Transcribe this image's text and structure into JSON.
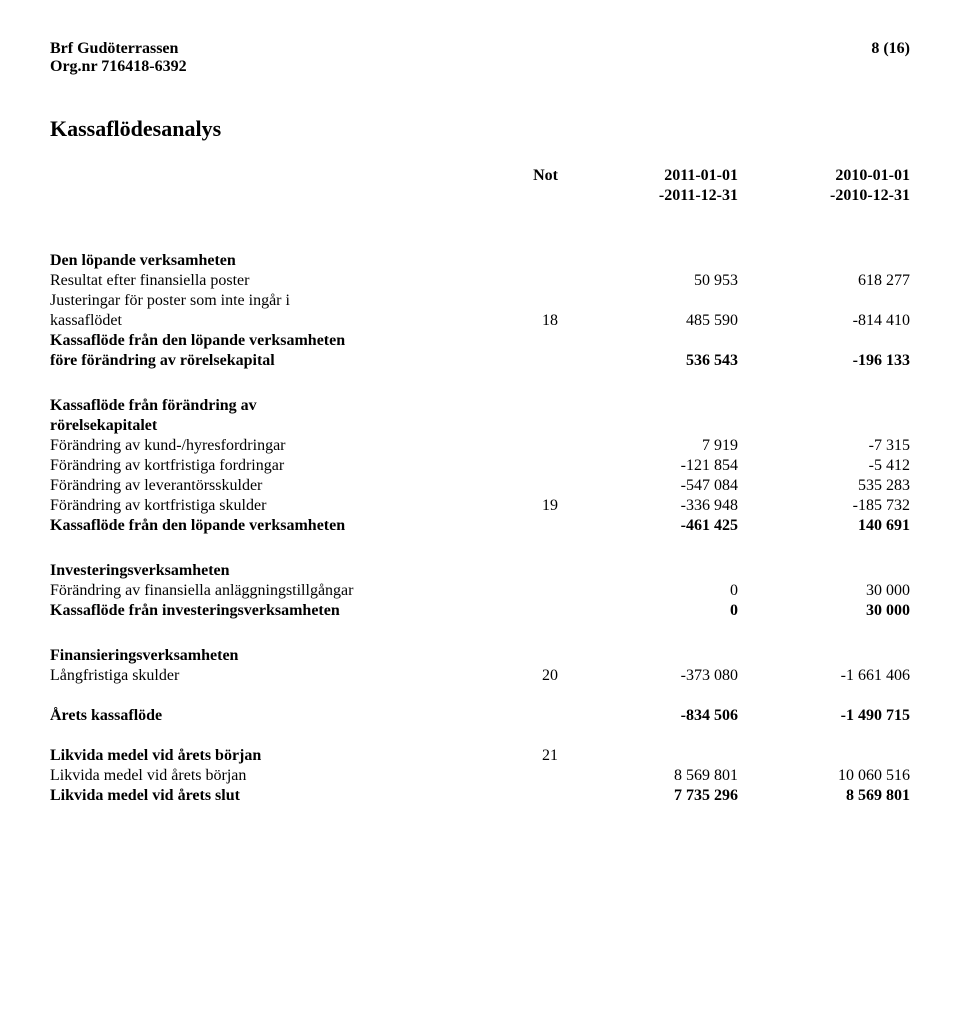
{
  "header": {
    "name": "Brf Gudöterrassen",
    "org_label": "Org.nr 716418-6392",
    "page": "8 (16)"
  },
  "title": "Kassaflödesanalys",
  "col_headers": {
    "note": "Not",
    "a1": "2011-01-01",
    "a2": "-2011-12-31",
    "b1": "2010-01-01",
    "b2": "-2010-12-31"
  },
  "s1": {
    "heading": "Den löpande verksamheten",
    "r1": {
      "label": "Resultat efter finansiella poster",
      "a": "50 953",
      "b": "618 277"
    },
    "r2a": "Justeringar för poster som inte ingår i",
    "r2b": {
      "label": "kassaflödet",
      "note": "18",
      "a": "485 590",
      "b": "-814 410"
    },
    "r3a": "Kassaflöde från den löpande verksamheten",
    "r3b": {
      "label": "före förändring av rörelsekapital",
      "a": "536 543",
      "b": "-196 133"
    }
  },
  "s2": {
    "h1": "Kassaflöde från förändring av",
    "h2": "rörelsekapitalet",
    "r1": {
      "label": "Förändring av kund-/hyresfordringar",
      "a": "7 919",
      "b": "-7 315"
    },
    "r2": {
      "label": "Förändring av kortfristiga fordringar",
      "a": "-121 854",
      "b": "-5 412"
    },
    "r3": {
      "label": "Förändring av leverantörsskulder",
      "a": "-547 084",
      "b": "535 283"
    },
    "r4": {
      "label": "Förändring av kortfristiga skulder",
      "note": "19",
      "a": "-336 948",
      "b": "-185 732"
    },
    "r5": {
      "label": "Kassaflöde från den löpande verksamheten",
      "a": "-461 425",
      "b": "140 691"
    }
  },
  "s3": {
    "heading": "Investeringsverksamheten",
    "r1": {
      "label": "Förändring av finansiella anläggningstillgångar",
      "a": "0",
      "b": "30 000"
    },
    "r2": {
      "label": "Kassaflöde från investeringsverksamheten",
      "a": "0",
      "b": "30 000"
    }
  },
  "s4": {
    "heading": "Finansieringsverksamheten",
    "r1": {
      "label": "Långfristiga skulder",
      "note": "20",
      "a": "-373 080",
      "b": "-1 661 406"
    }
  },
  "s5": {
    "r1": {
      "label": "Årets kassaflöde",
      "a": "-834 506",
      "b": "-1 490 715"
    }
  },
  "s6": {
    "r1": {
      "label": "Likvida medel vid årets början",
      "note": "21"
    },
    "r2": {
      "label": "Likvida medel vid årets början",
      "a": "8 569 801",
      "b": "10 060 516"
    },
    "r3": {
      "label": "Likvida medel vid årets slut",
      "a": "7 735 296",
      "b": "8 569 801"
    }
  }
}
